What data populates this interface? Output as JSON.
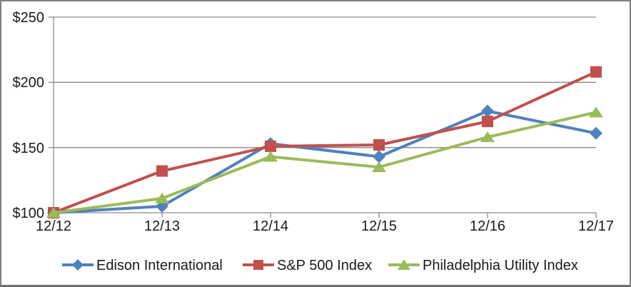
{
  "chart_data": {
    "type": "line",
    "categories": [
      "12/12",
      "12/13",
      "12/14",
      "12/15",
      "12/16",
      "12/17"
    ],
    "series": [
      {
        "name": "Edison International",
        "color": "#4F81BD",
        "marker": "diamond",
        "values": [
          100,
          105,
          153,
          143,
          178,
          161
        ]
      },
      {
        "name": "S&P 500 Index",
        "color": "#C0504D",
        "marker": "square",
        "values": [
          100,
          132,
          151,
          152,
          170,
          208
        ]
      },
      {
        "name": "Philadelphia Utility Index",
        "color": "#9BBB59",
        "marker": "triangle",
        "values": [
          100,
          111,
          143,
          135,
          158,
          177
        ]
      }
    ],
    "x_axis": {
      "tick_labels": [
        "12/12",
        "12/13",
        "12/14",
        "12/15",
        "12/16",
        "12/17"
      ]
    },
    "y_axis": {
      "min": 100,
      "max": 250,
      "step": 50,
      "tick_labels": [
        "$100",
        "$150",
        "$200",
        "$250"
      ]
    },
    "grid": true,
    "legend_position": "bottom",
    "axis_color": "#8a8a8a",
    "text_color": "#1a1a1a",
    "frame_border_color": "#7f7f7f"
  }
}
